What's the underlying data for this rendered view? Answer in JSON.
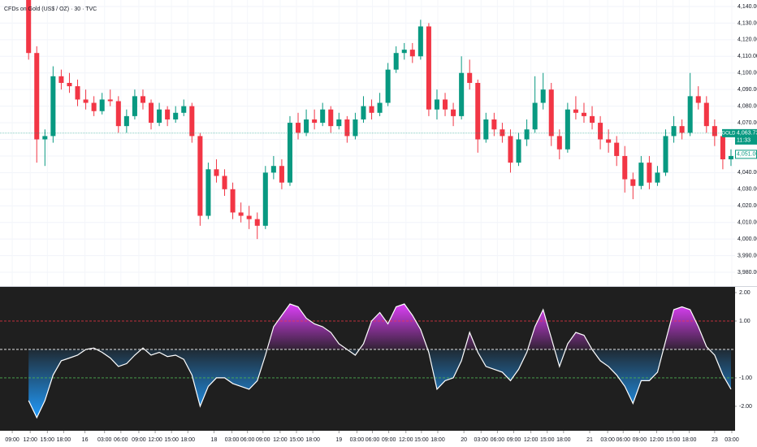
{
  "chart_data": [
    {
      "type": "candlestick",
      "title": "CFDs on Gold (US$ / OZ) · 30 · TVC",
      "xlim": [
        -3,
        87
      ],
      "ylim": [
        3971.7,
        4143.9
      ],
      "grid": true,
      "up_color": "#089981",
      "down_color": "#f23645",
      "yticks": [
        {
          "value": 3980,
          "label": "3,980.000"
        },
        {
          "value": 3990,
          "label": "3,990.000"
        },
        {
          "value": 4000,
          "label": "4,000.000"
        },
        {
          "value": 4010,
          "label": "4,010.000"
        },
        {
          "value": 4020,
          "label": "4,020.000"
        },
        {
          "value": 4030,
          "label": "4,030.000"
        },
        {
          "value": 4040,
          "label": "4,040.000"
        },
        {
          "value": 4050,
          "label": "4,050.000"
        },
        {
          "value": 4060,
          "label": "4,060.000"
        },
        {
          "value": 4070,
          "label": "4,070.000"
        },
        {
          "value": 4080,
          "label": "4,080.000"
        },
        {
          "value": 4090,
          "label": "4,090.000"
        },
        {
          "value": 4100,
          "label": "4,100.000"
        },
        {
          "value": 4110,
          "label": "4,110.000"
        },
        {
          "value": 4120,
          "label": "4,120.000"
        },
        {
          "value": 4130,
          "label": "4,130.000"
        },
        {
          "value": 4140,
          "label": "4,140.000"
        }
      ],
      "open": [
        4148,
        4112,
        4060,
        4062,
        4098,
        4094,
        4092,
        4084,
        4082,
        4077,
        4084,
        4083,
        4068,
        4074,
        4086,
        4082,
        4070,
        4078,
        4072,
        4076,
        4080,
        4062,
        4014,
        4042,
        4038,
        4030,
        4016,
        4014,
        4012,
        4008,
        4040,
        4044,
        4034,
        4070,
        4064,
        4072,
        4070,
        4078,
        4068,
        4072,
        4062,
        4072,
        4080,
        4076,
        4082,
        4102,
        4112,
        4114,
        4110,
        4128,
        4078,
        4084,
        4078,
        4074,
        4100,
        4094,
        4060,
        4072,
        4066,
        4062,
        4046,
        4060,
        4066,
        4082,
        4090,
        4062,
        4054,
        4078,
        4076,
        4074,
        4070,
        4060,
        4058,
        4050,
        4036,
        4032,
        4046,
        4034,
        4040,
        4062,
        4068,
        4064,
        4086,
        4082,
        4068,
        4062,
        4048
      ],
      "high": [
        4152,
        4116,
        4066,
        4104,
        4102,
        4100,
        4096,
        4090,
        4086,
        4088,
        4090,
        4086,
        4078,
        4090,
        4090,
        4084,
        4082,
        4080,
        4080,
        4084,
        4082,
        4064,
        4046,
        4048,
        4042,
        4034,
        4022,
        4020,
        4016,
        4044,
        4050,
        4048,
        4074,
        4076,
        4078,
        4078,
        4082,
        4080,
        4076,
        4074,
        4076,
        4086,
        4084,
        4088,
        4106,
        4116,
        4118,
        4118,
        4132,
        4130,
        4090,
        4088,
        4082,
        4110,
        4108,
        4096,
        4076,
        4076,
        4070,
        4066,
        4064,
        4072,
        4098,
        4100,
        4094,
        4066,
        4082,
        4086,
        4082,
        4080,
        4074,
        4066,
        4062,
        4056,
        4040,
        4050,
        4050,
        4044,
        4066,
        4074,
        4072,
        4100,
        4092,
        4086,
        4072,
        4066,
        4054
      ],
      "low": [
        4108,
        4046,
        4044,
        4058,
        4090,
        4088,
        4080,
        4078,
        4074,
        4075,
        4080,
        4064,
        4064,
        4072,
        4078,
        4066,
        4068,
        4068,
        4070,
        4074,
        4058,
        4008,
        4012,
        4034,
        4026,
        4012,
        4010,
        4006,
        4000,
        4006,
        4036,
        4030,
        4032,
        4060,
        4062,
        4066,
        4068,
        4064,
        4066,
        4058,
        4060,
        4070,
        4072,
        4074,
        4080,
        4100,
        4108,
        4106,
        4108,
        4074,
        4072,
        4074,
        4068,
        4072,
        4090,
        4052,
        4058,
        4062,
        4058,
        4040,
        4044,
        4056,
        4064,
        4078,
        4056,
        4048,
        4052,
        4072,
        4070,
        4066,
        4054,
        4052,
        4044,
        4028,
        4024,
        4030,
        4030,
        4032,
        4038,
        4058,
        4060,
        4062,
        4078,
        4064,
        4056,
        4042,
        4044
      ],
      "close": [
        4112,
        4060,
        4062,
        4098,
        4094,
        4092,
        4084,
        4082,
        4077,
        4084,
        4083,
        4068,
        4074,
        4086,
        4082,
        4070,
        4078,
        4072,
        4076,
        4080,
        4062,
        4014,
        4042,
        4038,
        4030,
        4016,
        4014,
        4012,
        4008,
        4040,
        4044,
        4034,
        4070,
        4064,
        4072,
        4070,
        4078,
        4068,
        4072,
        4062,
        4072,
        4080,
        4076,
        4082,
        4102,
        4112,
        4114,
        4110,
        4128,
        4078,
        4084,
        4078,
        4074,
        4100,
        4094,
        4060,
        4072,
        4066,
        4062,
        4046,
        4060,
        4066,
        4082,
        4090,
        4062,
        4054,
        4078,
        4076,
        4074,
        4070,
        4060,
        4058,
        4050,
        4036,
        4032,
        4046,
        4034,
        4040,
        4062,
        4068,
        4064,
        4086,
        4082,
        4068,
        4062,
        4048,
        4050
      ],
      "symbol": "GOLD",
      "last_price": {
        "value": 4063.73,
        "label": "4,063.730"
      },
      "countdown": "11:33",
      "marker": {
        "value": 4051,
        "label": "4,051.000"
      }
    },
    {
      "type": "area",
      "xlim": [
        -3,
        87
      ],
      "ylim": [
        -2.86,
        2.2
      ],
      "background": "#1f1f1f",
      "pos_color": "#e040fb",
      "neg_color": "#2196f3",
      "line_color": "#ffffff",
      "yticks": [
        {
          "value": 2,
          "label": "2.00"
        },
        {
          "value": 1,
          "label": "1.00"
        },
        {
          "value": -1,
          "label": "-1.00"
        },
        {
          "value": -2,
          "label": "-2.00"
        }
      ],
      "levels": [
        {
          "value": 1,
          "color": "#f23645"
        },
        {
          "value": 0,
          "color": "#ffffff"
        },
        {
          "value": -1,
          "color": "#4caf50"
        }
      ],
      "values": [
        -1.8,
        -2.4,
        -1.8,
        -0.9,
        -0.4,
        -0.3,
        -0.2,
        0.0,
        0.05,
        -0.1,
        -0.3,
        -0.6,
        -0.5,
        -0.2,
        0.05,
        -0.2,
        -0.1,
        -0.25,
        -0.2,
        -0.35,
        -0.9,
        -2.0,
        -1.3,
        -1.0,
        -1.0,
        -1.2,
        -1.3,
        -1.4,
        -1.1,
        -0.2,
        0.8,
        1.2,
        1.6,
        1.5,
        1.1,
        0.9,
        0.8,
        0.6,
        0.2,
        0.0,
        -0.2,
        0.2,
        1.0,
        1.3,
        0.9,
        1.5,
        1.6,
        1.2,
        0.7,
        -0.1,
        -1.4,
        -1.1,
        -1.0,
        -0.4,
        0.6,
        -0.1,
        -0.6,
        -0.7,
        -0.8,
        -1.1,
        -0.7,
        -0.1,
        0.8,
        1.4,
        0.4,
        -0.6,
        0.2,
        0.6,
        0.5,
        0.0,
        -0.4,
        -0.6,
        -0.9,
        -1.3,
        -1.9,
        -1.1,
        -1.1,
        -0.8,
        0.3,
        1.4,
        1.5,
        1.4,
        0.8,
        0.1,
        -0.2,
        -0.9,
        -1.4
      ],
      "xticks": [
        {
          "value": -1.5,
          "label": "09:00"
        },
        {
          "value": 0.7,
          "label": "12:00"
        },
        {
          "value": 2.8,
          "label": "15:00"
        },
        {
          "value": 4.8,
          "label": "18:00"
        },
        {
          "value": 7.4,
          "label": "16"
        },
        {
          "value": 9.8,
          "label": "03:00"
        },
        {
          "value": 11.8,
          "label": "06:00"
        },
        {
          "value": 14,
          "label": "09:00"
        },
        {
          "value": 16,
          "label": "12:00"
        },
        {
          "value": 18,
          "label": "15:00"
        },
        {
          "value": 20,
          "label": "18:00"
        },
        {
          "value": 23.2,
          "label": "18"
        },
        {
          "value": 25.4,
          "label": "03:00"
        },
        {
          "value": 27.3,
          "label": "06:00"
        },
        {
          "value": 29.2,
          "label": "09:00"
        },
        {
          "value": 31.3,
          "label": "12:00"
        },
        {
          "value": 33.3,
          "label": "15:00"
        },
        {
          "value": 35.3,
          "label": "18:00"
        },
        {
          "value": 38.5,
          "label": "19"
        },
        {
          "value": 40.7,
          "label": "03:00"
        },
        {
          "value": 42.6,
          "label": "06:00"
        },
        {
          "value": 44.6,
          "label": "09:00"
        },
        {
          "value": 46.7,
          "label": "12:00"
        },
        {
          "value": 48.6,
          "label": "15:00"
        },
        {
          "value": 50.6,
          "label": "18:00"
        },
        {
          "value": 53.8,
          "label": "20"
        },
        {
          "value": 55.9,
          "label": "03:00"
        },
        {
          "value": 57.9,
          "label": "06:00"
        },
        {
          "value": 59.9,
          "label": "09:00"
        },
        {
          "value": 62,
          "label": "12:00"
        },
        {
          "value": 64,
          "label": "15:00"
        },
        {
          "value": 66,
          "label": "18:00"
        },
        {
          "value": 69.2,
          "label": "21"
        },
        {
          "value": 71.4,
          "label": "03:00"
        },
        {
          "value": 73.3,
          "label": "06:00"
        },
        {
          "value": 75.3,
          "label": "09:00"
        },
        {
          "value": 77.4,
          "label": "12:00"
        },
        {
          "value": 79.4,
          "label": "15:00"
        },
        {
          "value": 81.4,
          "label": "18:00"
        },
        {
          "value": 84.5,
          "label": "23"
        },
        {
          "value": 86.6,
          "label": "03:00"
        }
      ]
    }
  ]
}
